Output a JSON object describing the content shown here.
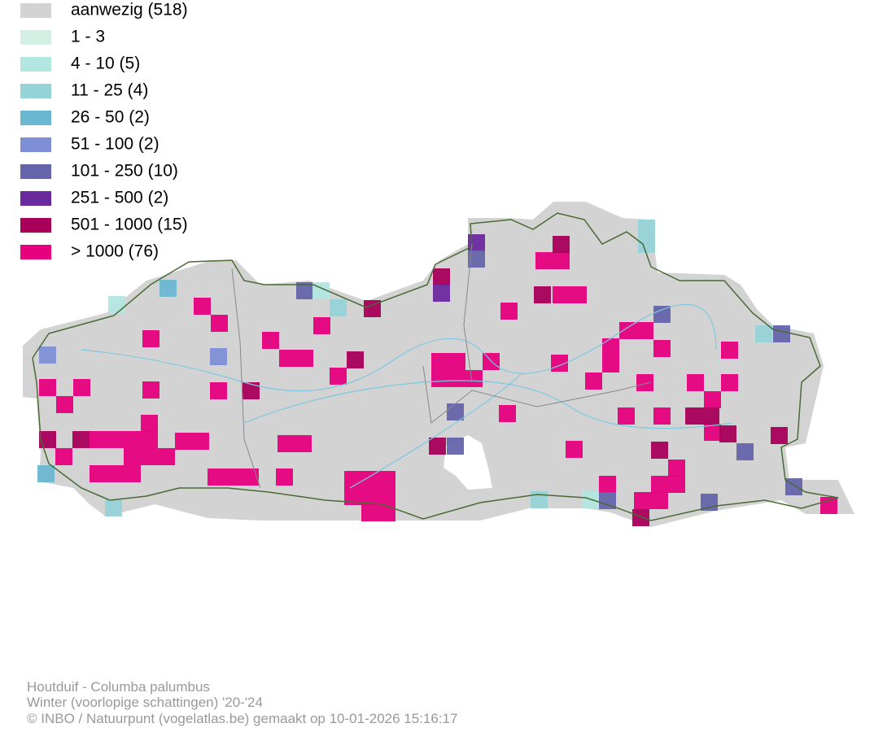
{
  "legend": [
    {
      "label": "aanwezig (518)",
      "color": "#d3d3d3"
    },
    {
      "label": "1 - 3",
      "color": "#d4f0e4"
    },
    {
      "label": "4 - 10 (5)",
      "color": "#b2e6e0"
    },
    {
      "label": "11 - 25 (4)",
      "color": "#96d3d8"
    },
    {
      "label": "26 - 50 (2)",
      "color": "#6ab7d0"
    },
    {
      "label": "51 - 100 (2)",
      "color": "#7f8fd6"
    },
    {
      "label": "101 - 250 (10)",
      "color": "#6464aa"
    },
    {
      "label": "251 - 500 (2)",
      "color": "#6a2a9e"
    },
    {
      "label": "501 - 1000 (15)",
      "color": "#a8005a"
    },
    {
      "label": "> 1000 (76)",
      "color": "#e6007e"
    }
  ],
  "footer": {
    "species": "Houtduif - Columba palumbus",
    "period": "Winter (voorlopige schattingen) '20-'24",
    "credit": "© INBO / Natuurpunt (vogelatlas.be) gemaakt op 10-01-2026 15:16:17"
  }
}
